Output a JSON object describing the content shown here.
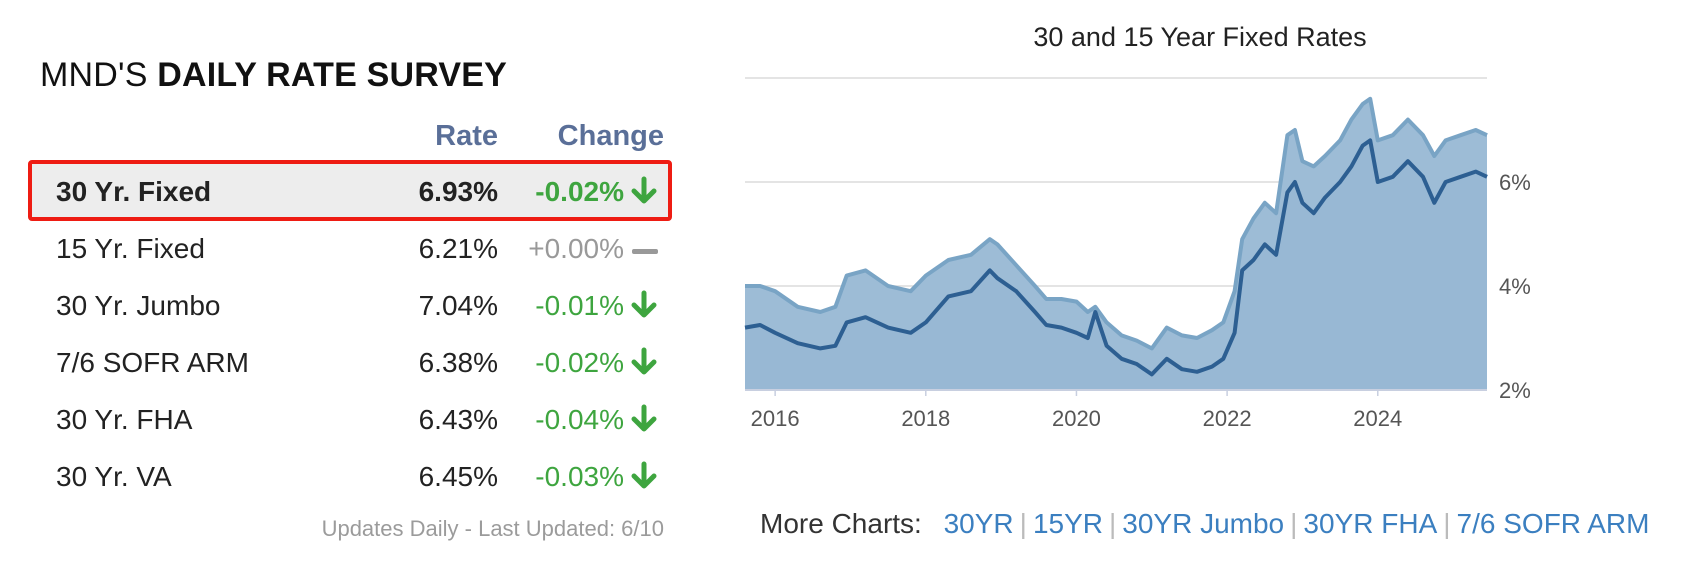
{
  "survey": {
    "title_prefix": "MND'S",
    "title_bold": "DAILY RATE SURVEY",
    "col_rate": "Rate",
    "col_change": "Change",
    "rows": [
      {
        "name": "30 Yr. Fixed",
        "rate": "6.93%",
        "change": "-0.02%",
        "direction": "down",
        "highlight": true
      },
      {
        "name": "15 Yr. Fixed",
        "rate": "6.21%",
        "change": "+0.00%",
        "direction": "flat",
        "highlight": false
      },
      {
        "name": "30 Yr. Jumbo",
        "rate": "7.04%",
        "change": "-0.01%",
        "direction": "down",
        "highlight": false
      },
      {
        "name": "7/6 SOFR ARM",
        "rate": "6.38%",
        "change": "-0.02%",
        "direction": "down",
        "highlight": false
      },
      {
        "name": "30 Yr. FHA",
        "rate": "6.43%",
        "change": "-0.04%",
        "direction": "down",
        "highlight": false
      },
      {
        "name": "30 Yr. VA",
        "rate": "6.45%",
        "change": "-0.03%",
        "direction": "down",
        "highlight": false
      }
    ],
    "updated": "Updates Daily - Last Updated: 6/10"
  },
  "chart_data": {
    "type": "area",
    "title": "30 and 15 Year Fixed Rates",
    "xlabel": "",
    "ylabel": "",
    "x_ticks": [
      "2016",
      "2018",
      "2020",
      "2022",
      "2024"
    ],
    "y_ticks": [
      "2%",
      "4%",
      "6%"
    ],
    "xlim": [
      2015.6,
      2025.45
    ],
    "ylim": [
      2,
      8
    ],
    "grid": true,
    "series": [
      {
        "color": "#79a4c5",
        "x": [
          2015.6,
          2015.8,
          2016.0,
          2016.3,
          2016.6,
          2016.8,
          2016.95,
          2017.2,
          2017.5,
          2017.8,
          2018.0,
          2018.3,
          2018.6,
          2018.85,
          2018.95,
          2019.2,
          2019.45,
          2019.6,
          2019.8,
          2020.0,
          2020.15,
          2020.25,
          2020.4,
          2020.6,
          2020.8,
          2021.0,
          2021.2,
          2021.4,
          2021.6,
          2021.8,
          2021.95,
          2022.1,
          2022.2,
          2022.35,
          2022.5,
          2022.65,
          2022.8,
          2022.9,
          2023.0,
          2023.15,
          2023.3,
          2023.5,
          2023.65,
          2023.8,
          2023.9,
          2024.0,
          2024.2,
          2024.4,
          2024.6,
          2024.75,
          2024.9,
          2025.1,
          2025.3,
          2025.45
        ],
        "y": [
          4.0,
          4.0,
          3.9,
          3.6,
          3.5,
          3.6,
          4.2,
          4.3,
          4.0,
          3.9,
          4.2,
          4.5,
          4.6,
          4.9,
          4.8,
          4.4,
          4.0,
          3.75,
          3.75,
          3.7,
          3.5,
          3.6,
          3.3,
          3.05,
          2.95,
          2.8,
          3.2,
          3.05,
          3.0,
          3.15,
          3.3,
          3.9,
          4.9,
          5.3,
          5.6,
          5.4,
          6.9,
          7.0,
          6.4,
          6.3,
          6.5,
          6.8,
          7.2,
          7.5,
          7.6,
          6.8,
          6.9,
          7.2,
          6.9,
          6.5,
          6.8,
          6.9,
          7.0,
          6.9
        ]
      },
      {
        "color": "#2d5f92",
        "x": [
          2015.6,
          2015.8,
          2016.0,
          2016.3,
          2016.6,
          2016.8,
          2016.95,
          2017.2,
          2017.5,
          2017.8,
          2018.0,
          2018.3,
          2018.6,
          2018.85,
          2018.95,
          2019.2,
          2019.45,
          2019.6,
          2019.8,
          2020.0,
          2020.15,
          2020.25,
          2020.4,
          2020.6,
          2020.8,
          2021.0,
          2021.2,
          2021.4,
          2021.6,
          2021.8,
          2021.95,
          2022.1,
          2022.2,
          2022.35,
          2022.5,
          2022.65,
          2022.8,
          2022.9,
          2023.0,
          2023.15,
          2023.3,
          2023.5,
          2023.65,
          2023.8,
          2023.9,
          2024.0,
          2024.2,
          2024.4,
          2024.6,
          2024.75,
          2024.9,
          2025.1,
          2025.3,
          2025.45
        ],
        "y": [
          3.2,
          3.25,
          3.1,
          2.9,
          2.8,
          2.85,
          3.3,
          3.4,
          3.2,
          3.1,
          3.3,
          3.8,
          3.9,
          4.3,
          4.15,
          3.9,
          3.5,
          3.25,
          3.2,
          3.1,
          3.0,
          3.5,
          2.85,
          2.6,
          2.5,
          2.3,
          2.6,
          2.4,
          2.35,
          2.45,
          2.6,
          3.1,
          4.3,
          4.5,
          4.8,
          4.6,
          5.8,
          6.0,
          5.6,
          5.4,
          5.7,
          6.0,
          6.3,
          6.7,
          6.8,
          6.0,
          6.1,
          6.4,
          6.1,
          5.6,
          6.0,
          6.1,
          6.2,
          6.1
        ]
      }
    ]
  },
  "more_charts": {
    "label": "More Charts:",
    "links": [
      "30YR",
      "15YR",
      "30YR Jumbo",
      "30YR FHA",
      "7/6 SOFR ARM"
    ]
  }
}
